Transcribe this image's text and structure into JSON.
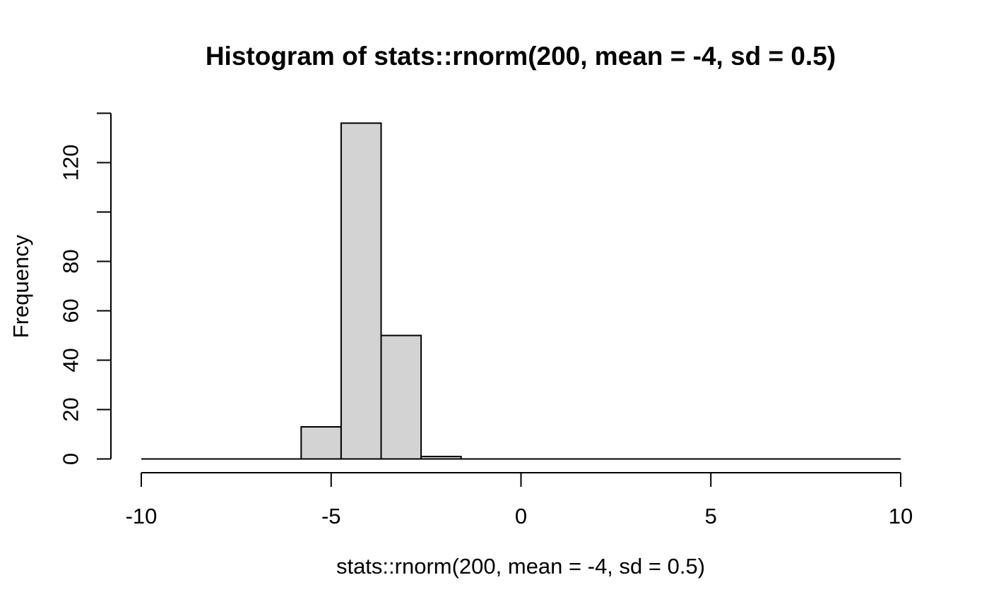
{
  "chart_data": {
    "type": "bar",
    "subtype": "histogram",
    "title": "Histogram of stats::rnorm(200, mean = -4, sd = 0.5)",
    "xlabel": "stats::rnorm(200, mean = -4, sd = 0.5)",
    "ylabel": "Frequency",
    "xlim": [
      -10,
      10
    ],
    "ylim": [
      0,
      140
    ],
    "x_ticks": [
      -10,
      -5,
      0,
      5,
      10
    ],
    "x_tick_labels": [
      "-10",
      "-5",
      "0",
      "5",
      "10"
    ],
    "y_ticks": [
      0,
      20,
      40,
      60,
      80,
      100,
      120,
      140
    ],
    "y_tick_labels": [
      "0",
      "20",
      "40",
      "60",
      "80",
      "",
      "120",
      ""
    ],
    "bin_breaks": [
      -10,
      -8.9474,
      -7.8947,
      -6.8421,
      -5.7895,
      -4.7368,
      -3.6842,
      -2.6316,
      -1.5789,
      -0.5263,
      0.5263,
      1.5789,
      2.6316,
      3.6842,
      4.7368,
      5.7895,
      6.8421,
      7.8947,
      8.9474,
      10
    ],
    "counts": [
      0,
      0,
      0,
      0,
      13,
      136,
      50,
      1,
      0,
      0,
      0,
      0,
      0,
      0,
      0,
      0,
      0,
      0,
      0
    ],
    "total_count": 200,
    "zero_baseline": true,
    "grid": false,
    "legend": "none",
    "colors": {
      "bar_fill": "#d3d3d3",
      "bar_border": "#000000",
      "axis": "#000000",
      "text": "#000000",
      "background": "#ffffff"
    }
  }
}
